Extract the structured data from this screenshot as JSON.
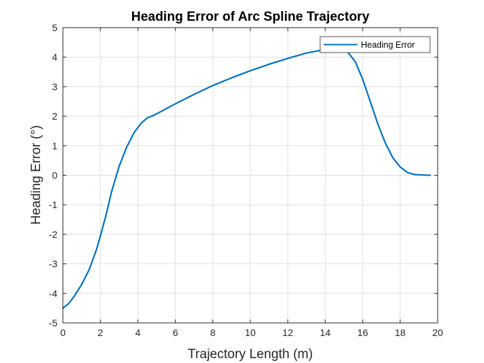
{
  "chart_data": {
    "type": "line",
    "title": "Heading Error of Arc Spline Trajectory",
    "xlabel": "Trajectory Length (m)",
    "ylabel": "Heading Error (°)",
    "xlim": [
      0,
      20
    ],
    "ylim": [
      -5,
      5
    ],
    "xticks": [
      0,
      2,
      4,
      6,
      8,
      10,
      12,
      14,
      16,
      18,
      20
    ],
    "yticks": [
      -5,
      -4,
      -3,
      -2,
      -1,
      0,
      1,
      2,
      3,
      4,
      5
    ],
    "grid": true,
    "legend_position": "top-right",
    "series": [
      {
        "name": "Heading Error",
        "color": "#0072BD",
        "x": [
          0,
          0.3,
          0.6,
          1.0,
          1.4,
          1.8,
          2.0,
          2.3,
          2.6,
          3.0,
          3.4,
          3.8,
          4.2,
          4.5,
          4.8,
          5.0,
          6,
          7,
          8,
          9,
          10,
          11,
          12,
          13,
          14,
          14.7,
          15.2,
          15.6,
          16.0,
          16.4,
          16.8,
          17.2,
          17.6,
          18.0,
          18.4,
          18.8,
          19.2,
          19.6
        ],
        "y": [
          -4.5,
          -4.35,
          -4.1,
          -3.7,
          -3.2,
          -2.5,
          -2.05,
          -1.35,
          -0.55,
          0.3,
          0.95,
          1.45,
          1.78,
          1.94,
          2.02,
          2.08,
          2.42,
          2.74,
          3.04,
          3.3,
          3.54,
          3.76,
          3.96,
          4.14,
          4.26,
          4.26,
          4.17,
          3.85,
          3.25,
          2.5,
          1.75,
          1.1,
          0.6,
          0.28,
          0.09,
          0.02,
          0.01,
          0.0
        ]
      }
    ]
  }
}
